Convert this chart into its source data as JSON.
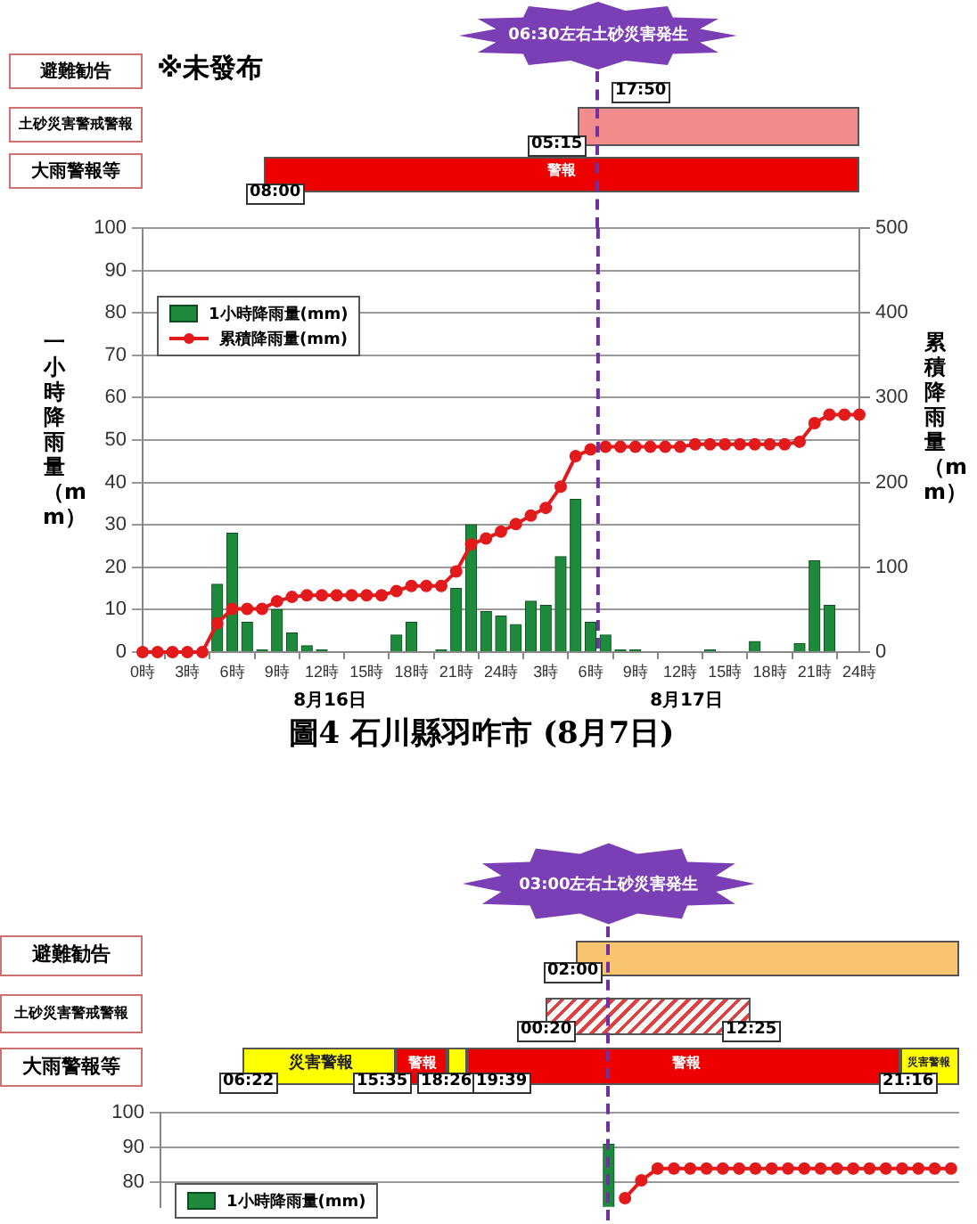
{
  "chart_data": [
    {
      "type": "bar",
      "title": "圖4 石川縣羽咋市 (8月7日)",
      "ylabel": "一小時降雨量（mm）",
      "y2label": "累積降雨量（mm）",
      "annotations": [
        "避難勧告",
        "※未發布",
        "土砂災害警戒警報",
        "17:50",
        "05:15",
        "大雨警報等",
        "警報",
        "08:00",
        "8月16日",
        "8月17日",
        "06:30左右土砂災害発生"
      ],
      "x": [
        "--08-16T00:00",
        "--08-16T01:00",
        "--08-16T02:00",
        "--08-16T03:00",
        "--08-16T04:00",
        "--08-16T05:00",
        "--08-16T06:00",
        "--08-16T07:00",
        "--08-16T08:00",
        "--08-16T09:00",
        "--08-16T10:00",
        "--08-16T11:00",
        "--08-16T12:00",
        "--08-16T13:00",
        "--08-16T14:00",
        "--08-16T15:00",
        "--08-16T16:00",
        "--08-16T17:00",
        "--08-16T18:00",
        "--08-16T19:00",
        "--08-16T20:00",
        "--08-16T21:00",
        "--08-16T22:00",
        "--08-16T23:00",
        "--08-17T00:00",
        "--08-17T01:00",
        "--08-17T02:00",
        "--08-17T03:00",
        "--08-17T04:00",
        "--08-17T05:00",
        "--08-17T06:00",
        "--08-17T07:00",
        "--08-17T08:00",
        "--08-17T09:00",
        "--08-17T10:00",
        "--08-17T11:00",
        "--08-17T12:00",
        "--08-17T13:00",
        "--08-17T14:00",
        "--08-17T15:00",
        "--08-17T16:00",
        "--08-17T17:00",
        "--08-17T18:00",
        "--08-17T19:00",
        "--08-17T20:00",
        "--08-17T21:00",
        "--08-17T22:00",
        "--08-17T23:00"
      ],
      "series": [
        {
          "name": "1小時降雨量(mm)",
          "color": "#1e8a3c",
          "values": [
            0,
            0,
            0,
            0,
            0,
            16,
            28,
            7,
            0.5,
            10,
            4.5,
            1.5,
            0.5,
            0,
            0,
            0,
            0,
            4,
            7,
            0,
            0.5,
            15,
            30,
            9.5,
            8.5,
            6.5,
            12,
            11,
            22.5,
            36,
            7,
            4,
            0.5,
            0.5,
            0,
            0,
            0,
            0,
            0.5,
            0,
            0,
            2.5,
            0,
            0,
            2,
            21.5,
            11,
            0
          ]
        },
        {
          "type": "line",
          "name": "累積降雨量(mm)",
          "color": "#e31a1c",
          "axis": "y2",
          "x": [
            "--08-16T00:00",
            "--08-16T01:00",
            "--08-16T02:00",
            "--08-16T03:00",
            "--08-16T04:00",
            "--08-16T05:00",
            "--08-16T06:00",
            "--08-16T07:00",
            "--08-16T08:00",
            "--08-16T09:00",
            "--08-16T10:00",
            "--08-16T11:00",
            "--08-16T12:00",
            "--08-16T13:00",
            "--08-16T14:00",
            "--08-16T15:00",
            "--08-16T16:00",
            "--08-16T17:00",
            "--08-16T18:00",
            "--08-16T19:00",
            "--08-16T20:00",
            "--08-16T21:00",
            "--08-16T22:00",
            "--08-16T23:00",
            "--08-17T00:00",
            "--08-17T01:00",
            "--08-17T02:00",
            "--08-17T03:00",
            "--08-17T04:00",
            "--08-17T05:00",
            "--08-17T06:00",
            "--08-17T07:00",
            "--08-17T08:00",
            "--08-17T09:00",
            "--08-17T10:00",
            "--08-17T11:00",
            "--08-17T12:00",
            "--08-17T13:00",
            "--08-17T14:00",
            "--08-17T15:00",
            "--08-17T16:00",
            "--08-17T17:00",
            "--08-17T18:00",
            "--08-17T19:00",
            "--08-17T20:00",
            "--08-17T21:00",
            "--08-17T22:00",
            "--08-17T23:00",
            "--08-18T00:00"
          ],
          "values": [
            0,
            0,
            0,
            0,
            0,
            34,
            51,
            51,
            51,
            60,
            65,
            67,
            67,
            67,
            67,
            67,
            67,
            72,
            78,
            78,
            78,
            95,
            127,
            134,
            142,
            151,
            161,
            170,
            195,
            231,
            239,
            242,
            242,
            242,
            242,
            242,
            242,
            245,
            245,
            245,
            245,
            245,
            245,
            245,
            248,
            270,
            280,
            280,
            280
          ]
        }
      ],
      "xlim": [
        "--08-16T00:00",
        "--08-18T00:00"
      ],
      "xticks": [
        {
          "value": "--08-16T00:00",
          "label": "0時"
        },
        {
          "value": "--08-16T03:00",
          "label": "3時"
        },
        {
          "value": "--08-16T06:00",
          "label": "6時"
        },
        {
          "value": "--08-16T09:00",
          "label": "9時"
        },
        {
          "value": "--08-16T12:00",
          "label": "12時"
        },
        {
          "value": "--08-16T15:00",
          "label": "15時"
        },
        {
          "value": "--08-16T18:00",
          "label": "18時"
        },
        {
          "value": "--08-16T21:00",
          "label": "21時"
        },
        {
          "value": "--08-17T00:00",
          "label": "24時"
        },
        {
          "value": "--08-17T03:00",
          "label": "3時"
        },
        {
          "value": "--08-17T06:00",
          "label": "6時"
        },
        {
          "value": "--08-17T09:00",
          "label": "9時"
        },
        {
          "value": "--08-17T12:00",
          "label": "12時"
        },
        {
          "value": "--08-17T15:00",
          "label": "15時"
        },
        {
          "value": "--08-17T18:00",
          "label": "18時"
        },
        {
          "value": "--08-17T21:00",
          "label": "21時"
        },
        {
          "value": "--08-18T00:00",
          "label": "24時"
        }
      ],
      "ylim": [
        0,
        100
      ],
      "yticks": [
        0,
        10,
        20,
        30,
        40,
        50,
        60,
        70,
        80,
        90,
        100
      ],
      "y2lim": [
        0,
        500
      ],
      "y2ticks": [
        0,
        100,
        200,
        300,
        400,
        500
      ],
      "ref_lines": [
        {
          "axis": "x",
          "value": "--08-17T06:30",
          "color": "#7030a0",
          "line_style": "dashed"
        }
      ],
      "grid": "y",
      "legend": "top left",
      "marker": "circle"
    },
    {
      "type": "bar",
      "annotations": [
        "避難勧告",
        "02:00",
        "土砂災害警戒警報",
        "00:20",
        "12:25",
        "大雨警報等",
        "災害警報",
        "警報",
        "警報",
        "災害警報",
        "06:22",
        "15:35",
        "18:26",
        "19:39",
        "21:16",
        "03:00左右土砂災害発生"
      ],
      "categories": [
        null,
        null,
        null,
        null,
        null,
        null,
        null,
        null,
        null,
        null,
        null,
        null,
        null,
        null,
        null,
        null,
        null,
        null,
        null,
        null,
        null,
        null,
        null,
        null,
        null,
        null,
        null,
        null,
        null,
        null,
        null,
        null,
        null,
        null,
        null,
        null,
        null,
        null,
        null,
        null,
        null,
        null,
        null,
        null,
        null,
        null,
        null,
        null,
        null
      ],
      "series": [
        {
          "name": "1小時降雨量(mm)",
          "color": "#1e8a3c",
          "values": [
            null,
            null,
            null,
            null,
            null,
            null,
            null,
            null,
            null,
            null,
            null,
            null,
            null,
            null,
            null,
            null,
            null,
            null,
            null,
            null,
            null,
            null,
            null,
            null,
            null,
            null,
            null,
            91,
            null,
            null,
            null,
            null,
            null,
            null,
            null,
            null,
            null,
            null,
            null,
            null,
            null,
            null,
            null,
            null,
            null,
            null,
            null,
            null,
            null
          ]
        },
        {
          "type": "line",
          "color": "#e31a1c",
          "values": [
            null,
            null,
            null,
            null,
            null,
            null,
            null,
            null,
            null,
            null,
            null,
            null,
            null,
            null,
            null,
            null,
            null,
            null,
            null,
            null,
            null,
            null,
            null,
            null,
            null,
            null,
            null,
            null,
            75.5,
            80.6,
            84,
            84,
            84,
            84,
            84,
            84,
            84,
            84,
            84,
            84,
            84,
            84,
            84,
            84,
            84,
            84,
            84,
            84,
            84
          ]
        }
      ],
      "ylim": [
        73,
        100
      ],
      "yticks": [
        80,
        90,
        100
      ],
      "tick_labels": "y",
      "grid": "y",
      "legend": "left",
      "marker": "circle"
    }
  ]
}
